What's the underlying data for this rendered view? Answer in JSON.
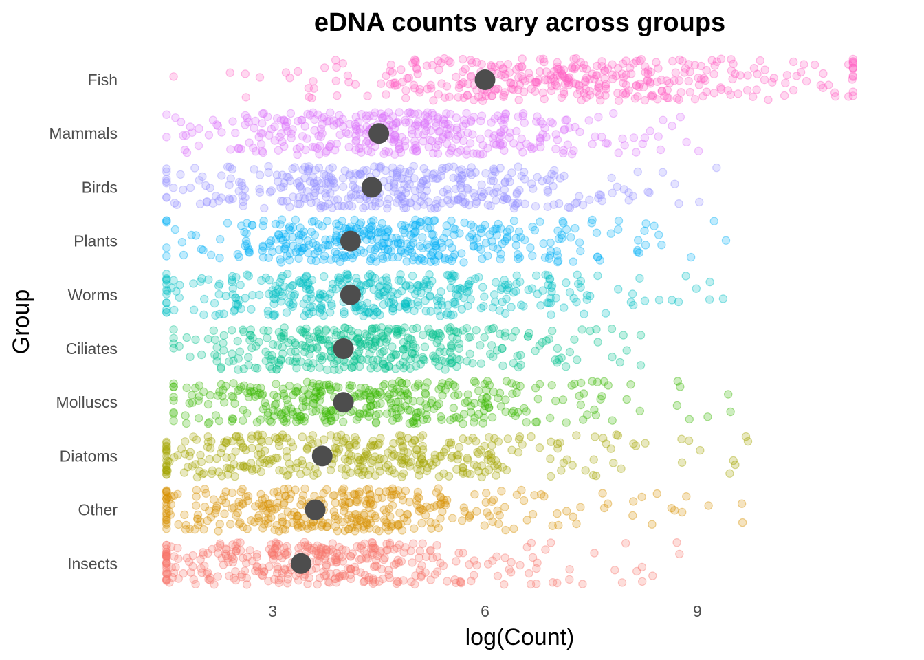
{
  "chart_data": {
    "type": "scatter",
    "subtype": "jitter strip plot with group means",
    "title": "eDNA counts vary across groups",
    "xlabel": "log(Count)",
    "ylabel": "Group",
    "xlim": [
      1.4,
      11.6
    ],
    "xticks": [
      3,
      6,
      9
    ],
    "grid": false,
    "legend": "none",
    "point_alpha": 0.25,
    "mean_color": "#4d4d4d",
    "categories": [
      "Fish",
      "Mammals",
      "Birds",
      "Plants",
      "Worms",
      "Ciliates",
      "Molluscs",
      "Diatoms",
      "Other",
      "Insects"
    ],
    "series": [
      {
        "name": "Fish",
        "color": "#FF61C3",
        "mean": 6.0,
        "min": 1.6,
        "max": 11.2,
        "mode": 6.6,
        "points_shown": 380
      },
      {
        "name": "Mammals",
        "color": "#DB72FB",
        "mean": 4.5,
        "min": 1.5,
        "max": 9.5,
        "mode": 4.2,
        "points_shown": 380
      },
      {
        "name": "Birds",
        "color": "#9590FF",
        "mean": 4.4,
        "min": 1.5,
        "max": 9.5,
        "mode": 4.0,
        "points_shown": 380
      },
      {
        "name": "Plants",
        "color": "#00B0F6",
        "mean": 4.1,
        "min": 1.5,
        "max": 9.5,
        "mode": 3.9,
        "points_shown": 380
      },
      {
        "name": "Worms",
        "color": "#00BFC4",
        "mean": 4.1,
        "min": 1.5,
        "max": 9.6,
        "mode": 3.8,
        "points_shown": 380
      },
      {
        "name": "Ciliates",
        "color": "#00C08B",
        "mean": 4.0,
        "min": 1.6,
        "max": 8.2,
        "mode": 3.8,
        "points_shown": 380
      },
      {
        "name": "Molluscs",
        "color": "#39B600",
        "mean": 4.0,
        "min": 1.6,
        "max": 9.5,
        "mode": 3.6,
        "points_shown": 380
      },
      {
        "name": "Diatoms",
        "color": "#A3A500",
        "mean": 3.7,
        "min": 1.5,
        "max": 10.0,
        "mode": 3.3,
        "points_shown": 380
      },
      {
        "name": "Other",
        "color": "#D89000",
        "mean": 3.6,
        "min": 1.5,
        "max": 9.8,
        "mode": 3.0,
        "points_shown": 380
      },
      {
        "name": "Insects",
        "color": "#F8766D",
        "mean": 3.4,
        "min": 1.5,
        "max": 9.1,
        "mode": 2.9,
        "points_shown": 380
      }
    ]
  }
}
